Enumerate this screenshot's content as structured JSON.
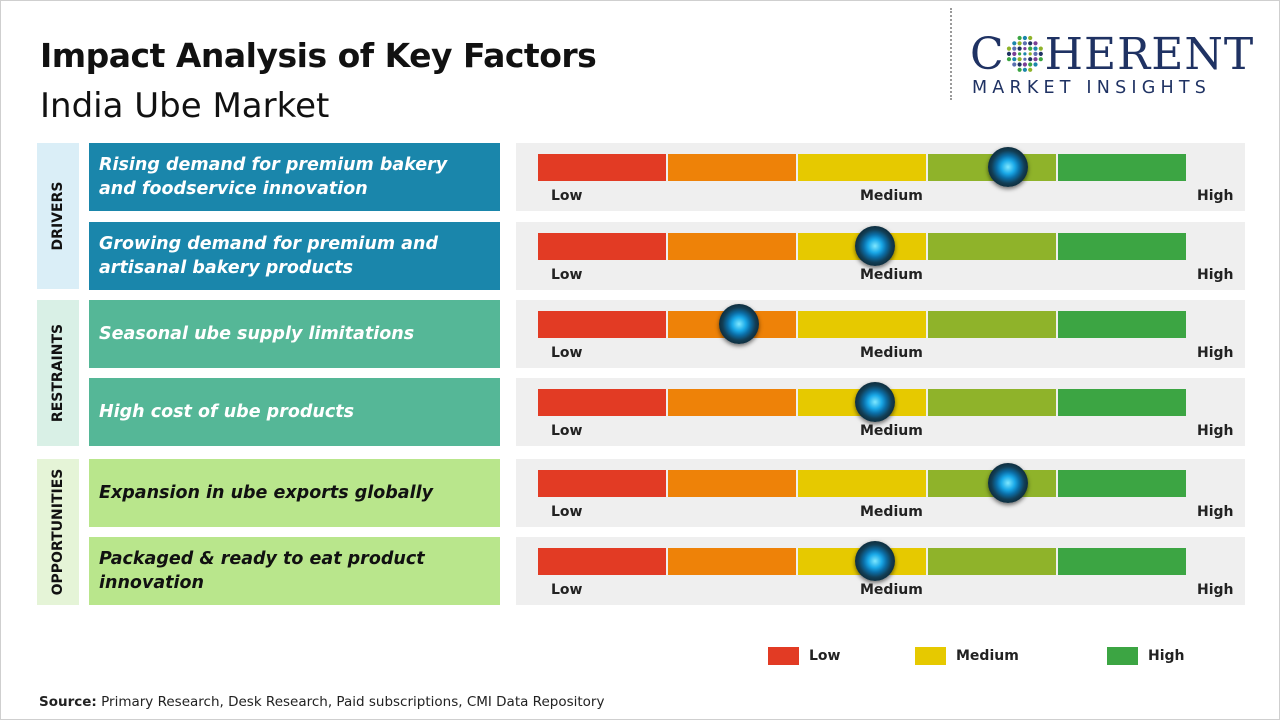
{
  "title": "Impact Analysis of Key Factors",
  "subtitle": "India Ube Market",
  "logo": {
    "word_start": "C",
    "word_end": "HERENT",
    "tagline": "MARKET INSIGHTS",
    "color": "#1f3263"
  },
  "scale_labels": {
    "low": "Low",
    "medium": "Medium",
    "high": "High"
  },
  "scale_colors": [
    "#e23b24",
    "#ee8208",
    "#e6c900",
    "#8fb32a",
    "#3ca543"
  ],
  "categories": [
    {
      "label": "DRIVERS",
      "color": "#daeef7",
      "box_color": "#1a86ab",
      "text_color": "#ffffff"
    },
    {
      "label": "RESTRAINTS",
      "color": "#d9f0e6",
      "box_color": "#55b797",
      "text_color": "#ffffff"
    },
    {
      "label": "OPPORTUNITIES",
      "color": "#e5f4d7",
      "box_color": "#b9e68c",
      "text_color": "#111111"
    }
  ],
  "factors": [
    {
      "category": 0,
      "text": "Rising demand for premium bakery and foodservice innovation",
      "impact": 0.725
    },
    {
      "category": 0,
      "text": "Growing demand for premium and artisanal bakery products",
      "impact": 0.52
    },
    {
      "category": 1,
      "text": "Seasonal ube supply limitations",
      "impact": 0.31
    },
    {
      "category": 1,
      "text": "High cost of ube products",
      "impact": 0.52
    },
    {
      "category": 2,
      "text": "Expansion in ube exports globally",
      "impact": 0.725
    },
    {
      "category": 2,
      "text": "Packaged & ready to eat product innovation",
      "impact": 0.52
    }
  ],
  "legend": [
    {
      "label": "Low",
      "color": "#e23b24"
    },
    {
      "label": "Medium",
      "color": "#e6c900"
    },
    {
      "label": "High",
      "color": "#3ca543"
    }
  ],
  "source": {
    "label": "Source:",
    "text": " Primary Research, Desk Research, Paid subscriptions, CMI Data Repository"
  }
}
